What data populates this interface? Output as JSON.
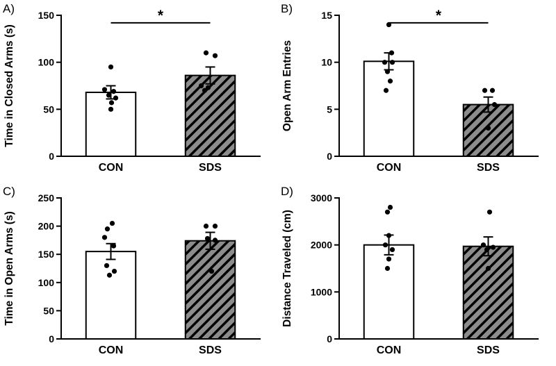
{
  "style": {
    "background": "#ffffff",
    "axis_color": "#000000",
    "text_color": "#000000",
    "point_color": "#000000",
    "open_bar_fill": "#ffffff",
    "hatched_bar_fill": "#8c8c8c",
    "hatch_line_color": "#000000",
    "bar_stroke": "#000000"
  },
  "chart_data": [
    {
      "type": "bar",
      "panel_label": "A)",
      "ylabel": "Time in Closed Arms (s)",
      "ylim": [
        0,
        150
      ],
      "yticks": [
        0,
        50,
        100,
        150
      ],
      "categories": [
        "CON",
        "SDS"
      ],
      "series": [
        {
          "name": "CON",
          "mean": 68,
          "sem": 7,
          "style": "open",
          "points": [
            [
              95,
              0
            ],
            [
              71,
              -9
            ],
            [
              69,
              4
            ],
            [
              65,
              -3
            ],
            [
              62,
              7
            ],
            [
              57,
              1
            ],
            [
              50,
              0
            ]
          ]
        },
        {
          "name": "SDS",
          "mean": 86,
          "sem": 9,
          "style": "hatched",
          "points": [
            [
              110,
              -6
            ],
            [
              107,
              7
            ],
            [
              75,
              -13
            ],
            [
              73,
              -3
            ],
            [
              70,
              -8
            ]
          ]
        }
      ],
      "significance": {
        "label": "*",
        "y": 142
      }
    },
    {
      "type": "bar",
      "panel_label": "B)",
      "ylabel": "Open Arm Entries",
      "ylim": [
        0,
        15
      ],
      "yticks": [
        0,
        5,
        10,
        15
      ],
      "categories": [
        "CON",
        "SDS"
      ],
      "series": [
        {
          "name": "CON",
          "mean": 10.1,
          "sem": 0.9,
          "style": "open",
          "points": [
            [
              14,
              0
            ],
            [
              11,
              4
            ],
            [
              10,
              -6
            ],
            [
              10,
              5
            ],
            [
              9,
              -2
            ],
            [
              8,
              2
            ],
            [
              7,
              -4
            ]
          ]
        },
        {
          "name": "SDS",
          "mean": 5.5,
          "sem": 0.8,
          "style": "hatched",
          "points": [
            [
              7,
              -5
            ],
            [
              7,
              6
            ],
            [
              5.5,
              9
            ],
            [
              3,
              0
            ]
          ]
        }
      ],
      "significance": {
        "label": "*",
        "y": 14.2
      }
    },
    {
      "type": "bar",
      "panel_label": "C)",
      "ylabel": "Time in Open Arms (s)",
      "ylim": [
        0,
        250
      ],
      "yticks": [
        0,
        50,
        100,
        150,
        200,
        250
      ],
      "categories": [
        "CON",
        "SDS"
      ],
      "series": [
        {
          "name": "CON",
          "mean": 155,
          "sem": 14,
          "style": "open",
          "points": [
            [
              205,
              2
            ],
            [
              195,
              -5
            ],
            [
              180,
              -9
            ],
            [
              165,
              4
            ],
            [
              130,
              -6
            ],
            [
              120,
              5
            ],
            [
              113,
              -2
            ]
          ]
        },
        {
          "name": "SDS",
          "mean": 174,
          "sem": 15,
          "style": "hatched",
          "points": [
            [
              200,
              -6
            ],
            [
              200,
              7
            ],
            [
              178,
              -4
            ],
            [
              175,
              7
            ],
            [
              120,
              2
            ]
          ]
        }
      ],
      "significance": null
    },
    {
      "type": "bar",
      "panel_label": "D)",
      "ylabel": "Distance Traveled (cm)",
      "ylim": [
        0,
        3000
      ],
      "yticks": [
        0,
        1000,
        2000,
        3000
      ],
      "categories": [
        "CON",
        "SDS"
      ],
      "series": [
        {
          "name": "CON",
          "mean": 2000,
          "sem": 210,
          "style": "open",
          "points": [
            [
              2800,
              2
            ],
            [
              2700,
              -2
            ],
            [
              2200,
              0
            ],
            [
              2000,
              -5
            ],
            [
              1900,
              5
            ],
            [
              1700,
              0
            ],
            [
              1500,
              -2
            ]
          ]
        },
        {
          "name": "SDS",
          "mean": 1970,
          "sem": 200,
          "style": "hatched",
          "points": [
            [
              2700,
              2
            ],
            [
              2000,
              -7
            ],
            [
              1950,
              7
            ],
            [
              1900,
              -2
            ],
            [
              1500,
              0
            ]
          ]
        }
      ],
      "significance": null
    }
  ]
}
